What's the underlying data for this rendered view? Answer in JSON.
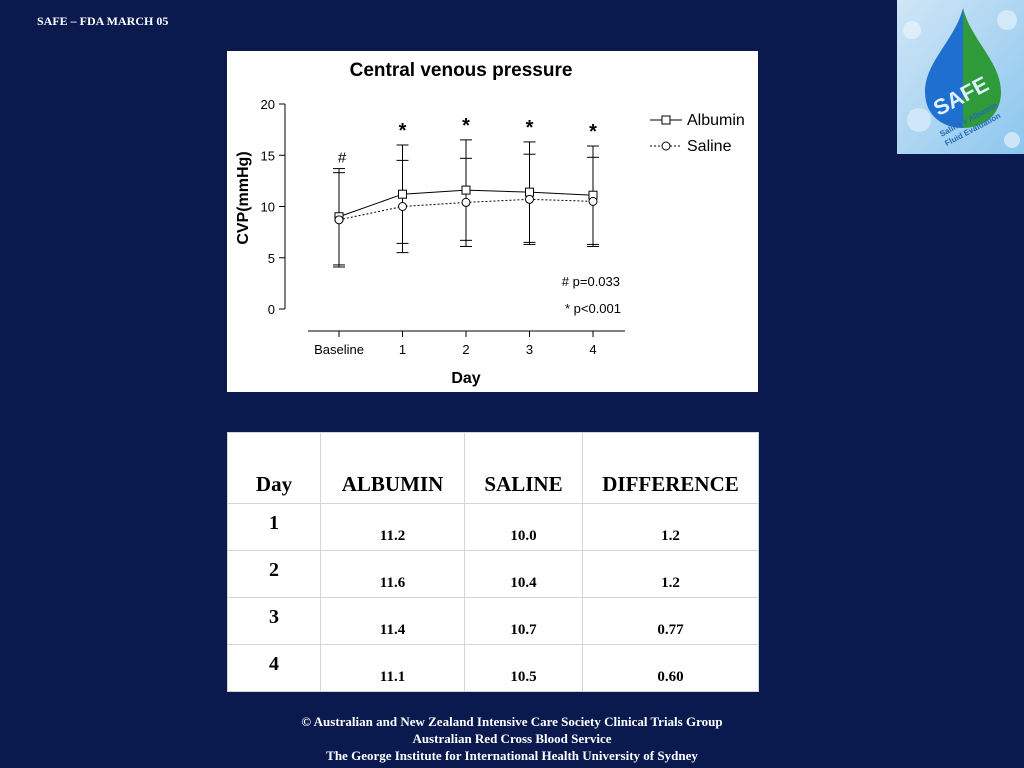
{
  "header": {
    "title": "SAFE – FDA MARCH 05"
  },
  "logo": {
    "word": "SAFE",
    "tagline_1": "Saline v Albumin",
    "tagline_2": "Fluid Evaluation"
  },
  "colors": {
    "background": "#0b1a4e",
    "panel": "#ffffff",
    "ink": "#000000"
  },
  "chart_data": {
    "type": "line",
    "title": "Central venous pressure",
    "xlabel": "Day",
    "ylabel": "CVP(mmHg)",
    "categories": [
      "Baseline",
      "1",
      "2",
      "3",
      "4"
    ],
    "yticks": [
      "0",
      "5",
      "10",
      "15",
      "20"
    ],
    "ylim": [
      0,
      20
    ],
    "legend_position": "top-right",
    "series": [
      {
        "name": "Albumin",
        "marker": "square",
        "line": "solid",
        "values": [
          9.0,
          11.2,
          11.6,
          11.4,
          11.1
        ],
        "error_low": [
          4.3,
          6.4,
          6.7,
          6.5,
          6.3
        ],
        "error_high": [
          13.7,
          16.0,
          16.5,
          16.3,
          15.9
        ]
      },
      {
        "name": "Saline",
        "marker": "circle",
        "line": "dotted",
        "values": [
          8.7,
          10.0,
          10.4,
          10.7,
          10.5
        ],
        "error_low": [
          4.1,
          5.5,
          6.1,
          6.3,
          6.1
        ],
        "error_high": [
          13.3,
          14.5,
          14.7,
          15.1,
          14.8
        ]
      }
    ],
    "significance_marks": [
      "#",
      "*",
      "*",
      "*",
      "*"
    ],
    "notes": [
      "# p=0.033",
      "* p<0.001"
    ]
  },
  "table": {
    "headers": [
      "Day",
      "ALBUMIN",
      "SALINE",
      "DIFFERENCE"
    ],
    "rows": [
      [
        "1",
        "11.2",
        "10.0",
        "1.2"
      ],
      [
        "2",
        "11.6",
        "10.4",
        "1.2"
      ],
      [
        "3",
        "11.4",
        "10.7",
        "0.77"
      ],
      [
        "4",
        "11.1",
        "10.5",
        "0.60"
      ]
    ]
  },
  "footer": {
    "line1": "© Australian and New Zealand Intensive Care Society Clinical Trials Group",
    "line2": "Australian Red Cross Blood Service",
    "line3": "The George Institute for International Health University of Sydney"
  }
}
